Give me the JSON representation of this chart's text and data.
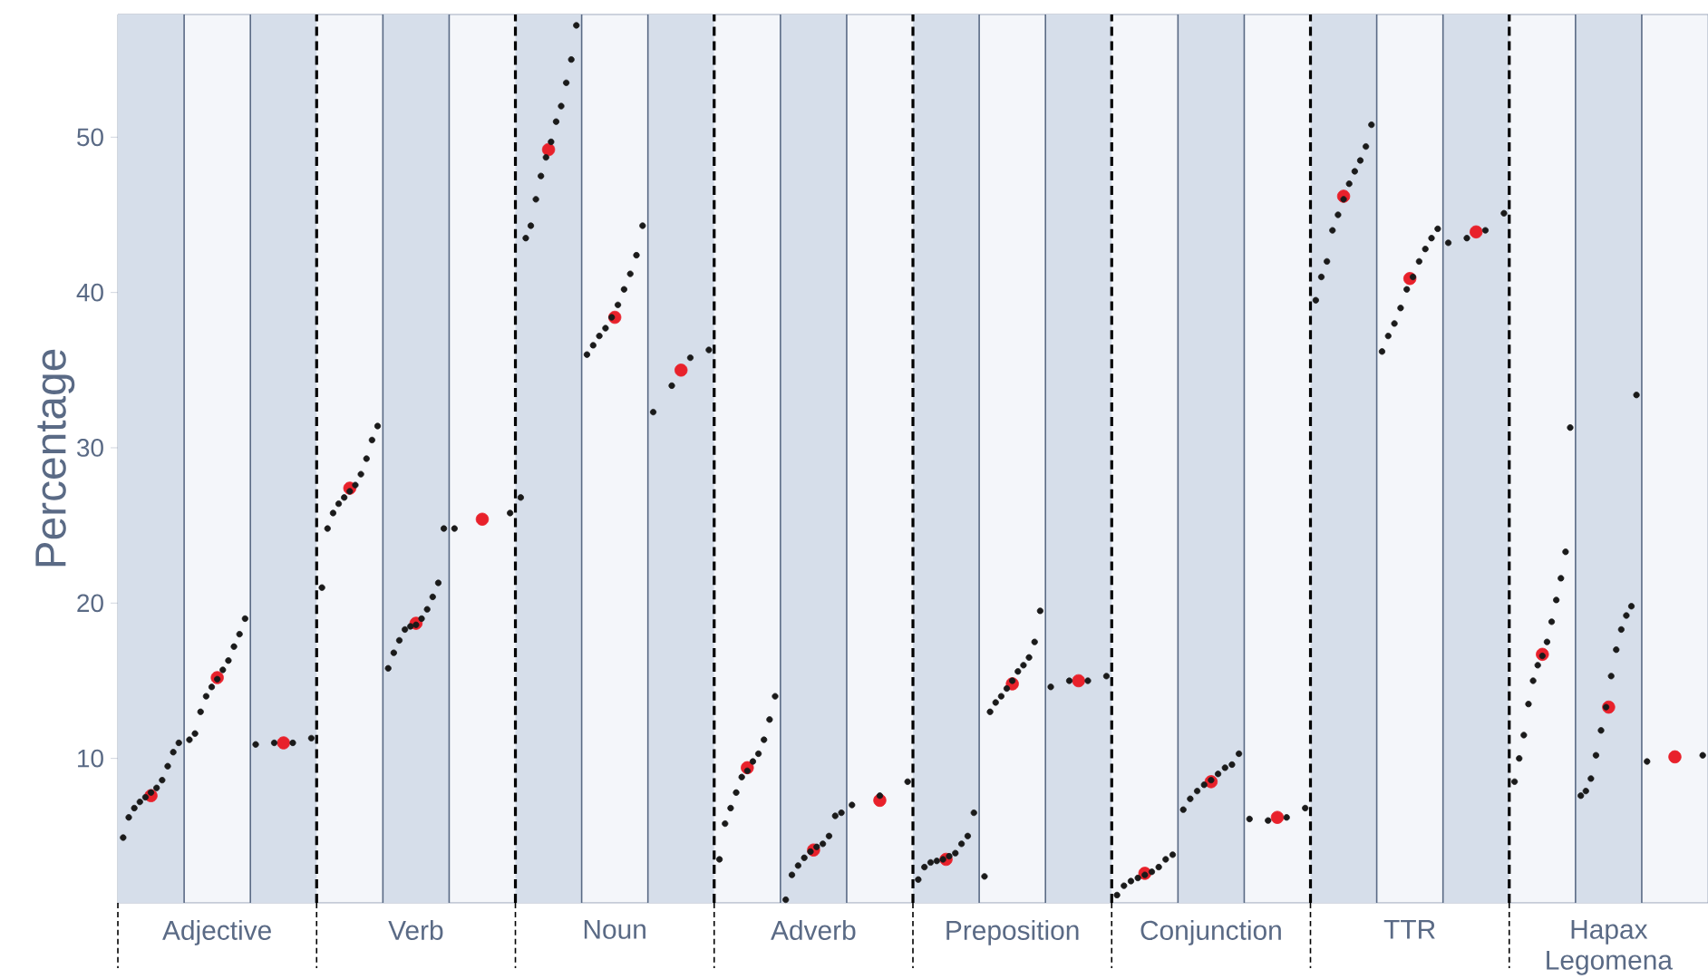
{
  "chart_data": {
    "type": "scatter",
    "ylabel": "Percentage",
    "marker": "circle",
    "ylim": [
      0.7,
      57.9
    ],
    "yticks": [
      10,
      20,
      30,
      40,
      50
    ],
    "categories": [
      null,
      "Adjective",
      null,
      null,
      "Verb",
      null,
      null,
      "Noun",
      null,
      null,
      "Adverb",
      null,
      null,
      "Preposition",
      null,
      null,
      "Conjunction",
      null,
      null,
      "TTR",
      null,
      null,
      "Hapax Legomena",
      null
    ],
    "series": [
      {
        "color": "#1a1a1a",
        "values": [
          4.9,
          11.2,
          10.9,
          21.0,
          15.8,
          24.8,
          26.8,
          36.0,
          32.3,
          3.5,
          0.9,
          7.0,
          2.2,
          2.4,
          14.6,
          1.2,
          6.7,
          6.1,
          39.5,
          36.2,
          43.2,
          8.5,
          7.6,
          9.8
        ]
      },
      {
        "color": "#1a1a1a",
        "values": [
          6.2,
          11.6,
          11.0,
          24.8,
          16.8,
          25.8,
          43.5,
          36.6,
          34.0,
          5.8,
          2.5,
          7.6,
          3.0,
          13.0,
          15.0,
          1.8,
          7.4,
          6.0,
          41.0,
          37.2,
          43.5,
          10.0,
          7.9,
          10.2
        ]
      },
      {
        "color": "#1a1a1a",
        "values": [
          6.8,
          13.0,
          11.0,
          25.8,
          17.6,
          null,
          44.3,
          37.2,
          35.8,
          6.8,
          3.1,
          8.5,
          3.3,
          13.6,
          15.0,
          2.1,
          7.9,
          6.2,
          42.0,
          38.0,
          44.0,
          11.5,
          8.7,
          null
        ]
      },
      {
        "color": "#1a1a1a",
        "values": [
          7.2,
          14.0,
          11.3,
          26.4,
          18.3,
          null,
          46.0,
          37.7,
          36.3,
          7.8,
          3.6,
          null,
          3.4,
          14.0,
          15.3,
          2.3,
          8.3,
          6.8,
          44.0,
          39.0,
          45.1,
          13.5,
          10.2,
          null
        ]
      },
      {
        "color": "#1a1a1a",
        "values": [
          7.5,
          14.6,
          null,
          26.8,
          18.5,
          null,
          47.5,
          38.4,
          null,
          8.8,
          4.0,
          null,
          3.5,
          14.5,
          null,
          2.5,
          8.6,
          null,
          45.0,
          40.2,
          null,
          15.0,
          11.8,
          null
        ]
      },
      {
        "color": "#1a1a1a",
        "values": [
          7.8,
          15.1,
          null,
          27.2,
          18.6,
          null,
          48.7,
          39.2,
          null,
          9.2,
          4.3,
          null,
          3.7,
          15.0,
          null,
          2.7,
          9.0,
          null,
          46.0,
          41.0,
          null,
          16.0,
          13.3,
          null
        ]
      },
      {
        "color": "#1a1a1a",
        "values": [
          8.1,
          15.7,
          null,
          27.6,
          19.0,
          null,
          49.7,
          40.2,
          null,
          9.8,
          4.5,
          null,
          3.9,
          15.6,
          null,
          3.0,
          9.4,
          null,
          47.0,
          42.0,
          null,
          16.6,
          15.3,
          null
        ]
      },
      {
        "color": "#1a1a1a",
        "values": [
          8.6,
          16.3,
          null,
          28.3,
          19.6,
          null,
          51.0,
          41.2,
          null,
          10.3,
          5.0,
          null,
          4.5,
          16.0,
          null,
          3.5,
          9.6,
          null,
          47.8,
          42.8,
          null,
          17.5,
          17.0,
          null
        ]
      },
      {
        "color": "#1a1a1a",
        "values": [
          9.5,
          17.2,
          null,
          29.3,
          20.4,
          null,
          52.0,
          42.4,
          null,
          11.2,
          6.3,
          null,
          5.0,
          16.5,
          null,
          3.8,
          10.3,
          null,
          48.5,
          43.5,
          null,
          18.8,
          18.3,
          null
        ]
      },
      {
        "color": "#1a1a1a",
        "values": [
          10.4,
          18.0,
          null,
          30.5,
          21.3,
          null,
          53.5,
          44.3,
          null,
          12.5,
          6.5,
          null,
          6.5,
          17.5,
          null,
          null,
          null,
          null,
          49.4,
          44.1,
          null,
          20.2,
          19.2,
          null
        ]
      },
      {
        "color": "#1a1a1a",
        "values": [
          11.0,
          19.0,
          null,
          31.4,
          24.8,
          null,
          55.0,
          null,
          null,
          14.0,
          null,
          null,
          null,
          19.5,
          null,
          null,
          null,
          null,
          50.8,
          null,
          null,
          21.6,
          19.8,
          null
        ]
      },
      {
        "color": "#1a1a1a",
        "values": [
          null,
          null,
          null,
          null,
          null,
          null,
          57.2,
          null,
          null,
          null,
          null,
          null,
          null,
          null,
          null,
          null,
          null,
          null,
          null,
          null,
          null,
          23.3,
          33.4,
          null
        ]
      },
      {
        "color": "#1a1a1a",
        "values": [
          null,
          null,
          null,
          null,
          null,
          null,
          null,
          null,
          null,
          null,
          null,
          null,
          null,
          null,
          null,
          null,
          null,
          null,
          null,
          null,
          null,
          31.3,
          null,
          null
        ]
      },
      {
        "color": "#e8212b",
        "values": [
          7.6,
          15.2,
          11.0,
          27.4,
          18.7,
          25.4,
          49.2,
          38.4,
          35.0,
          9.4,
          4.1,
          7.3,
          3.5,
          14.8,
          15.0,
          2.6,
          8.5,
          6.2,
          46.2,
          40.9,
          43.9,
          16.7,
          13.3,
          10.1
        ]
      }
    ]
  }
}
